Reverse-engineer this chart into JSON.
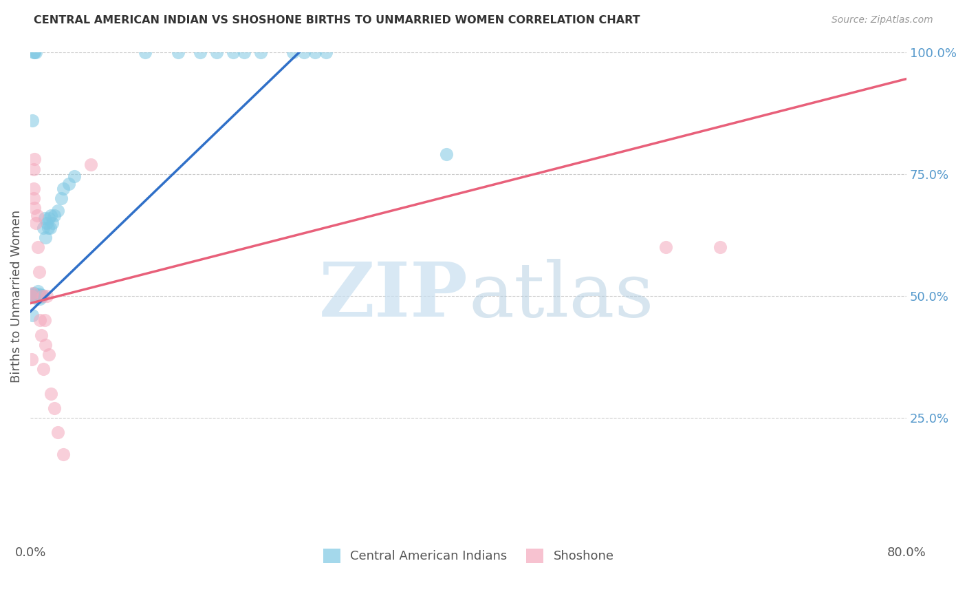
{
  "title": "CENTRAL AMERICAN INDIAN VS SHOSHONE BIRTHS TO UNMARRIED WOMEN CORRELATION CHART",
  "source": "Source: ZipAtlas.com",
  "ylabel": "Births to Unmarried Women",
  "xlim": [
    0.0,
    0.8
  ],
  "ylim": [
    0.0,
    1.0
  ],
  "xticks": [
    0.0,
    0.1,
    0.2,
    0.3,
    0.4,
    0.5,
    0.6,
    0.7,
    0.8
  ],
  "xticklabels": [
    "0.0%",
    "",
    "",
    "",
    "",
    "",
    "",
    "",
    "80.0%"
  ],
  "yticks": [
    0.0,
    0.25,
    0.5,
    0.75,
    1.0
  ],
  "yticklabels": [
    "",
    "25.0%",
    "50.0%",
    "75.0%",
    "100.0%"
  ],
  "blue_color": "#7ec8e3",
  "pink_color": "#f4a8bc",
  "blue_line_color": "#3070c8",
  "pink_line_color": "#e8607a",
  "legend_label_blue": "Central American Indians",
  "legend_label_pink": "Shoshone",
  "blue_line_x": [
    0.0,
    0.255
  ],
  "blue_line_y": [
    0.468,
    1.02
  ],
  "pink_line_x": [
    0.0,
    0.8
  ],
  "pink_line_y": [
    0.485,
    0.945
  ],
  "blue_x": [
    0.001,
    0.001,
    0.002,
    0.002,
    0.003,
    0.004,
    0.004,
    0.005,
    0.005,
    0.006,
    0.006,
    0.007,
    0.007,
    0.008,
    0.008,
    0.009,
    0.009,
    0.01,
    0.01,
    0.011,
    0.012,
    0.013,
    0.014,
    0.015,
    0.016,
    0.017,
    0.018,
    0.019,
    0.02,
    0.022,
    0.025,
    0.028,
    0.03,
    0.035,
    0.04,
    0.105,
    0.135,
    0.155,
    0.17,
    0.185,
    0.195,
    0.21,
    0.24,
    0.25,
    0.26,
    0.27,
    0.38,
    0.002,
    0.003,
    0.004,
    0.005
  ],
  "blue_y": [
    0.498,
    0.502,
    0.46,
    0.504,
    0.5,
    0.498,
    0.505,
    0.5,
    0.496,
    0.502,
    0.498,
    0.51,
    0.5,
    0.498,
    0.504,
    0.502,
    0.495,
    0.5,
    0.498,
    0.502,
    0.64,
    0.66,
    0.62,
    0.65,
    0.64,
    0.66,
    0.64,
    0.665,
    0.65,
    0.665,
    0.675,
    0.7,
    0.72,
    0.73,
    0.745,
    1.0,
    1.0,
    1.0,
    1.0,
    1.0,
    1.0,
    1.0,
    1.0,
    1.0,
    1.0,
    1.0,
    0.79,
    0.86,
    1.0,
    1.0,
    1.0
  ],
  "pink_x": [
    0.001,
    0.002,
    0.003,
    0.003,
    0.004,
    0.005,
    0.006,
    0.007,
    0.008,
    0.009,
    0.01,
    0.011,
    0.012,
    0.013,
    0.014,
    0.015,
    0.017,
    0.019,
    0.022,
    0.025,
    0.03,
    0.055,
    0.003,
    0.004,
    0.58,
    0.63,
    0.001
  ],
  "pink_y": [
    0.5,
    0.505,
    0.7,
    0.72,
    0.68,
    0.65,
    0.665,
    0.6,
    0.55,
    0.45,
    0.42,
    0.5,
    0.35,
    0.45,
    0.4,
    0.5,
    0.38,
    0.3,
    0.27,
    0.22,
    0.175,
    0.77,
    0.76,
    0.78,
    0.6,
    0.6,
    0.37
  ]
}
